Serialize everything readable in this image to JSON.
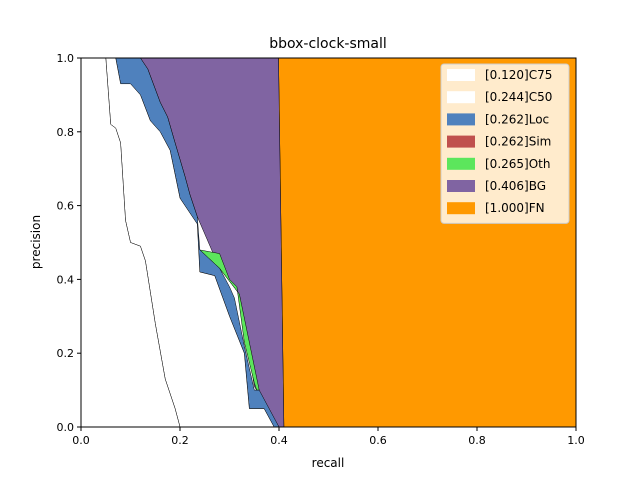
{
  "chart_data": {
    "type": "area",
    "title": "bbox-clock-small",
    "xlabel": "recall",
    "ylabel": "precision",
    "xlim": [
      0,
      1
    ],
    "ylim": [
      0,
      1
    ],
    "xticks": [
      "0.0",
      "0.2",
      "0.4",
      "0.6",
      "0.8",
      "1.0"
    ],
    "yticks": [
      "0.0",
      "0.2",
      "0.4",
      "0.6",
      "0.8",
      "1.0"
    ],
    "grid": false,
    "legend_position": "top-right",
    "series": [
      {
        "name": "[1.000]FN",
        "color": "#FF9900",
        "points": [
          [
            0.399,
            1.0
          ],
          [
            1.0,
            1.0
          ],
          [
            1.0,
            0.0
          ],
          [
            0.41,
            0.0
          ]
        ]
      },
      {
        "name": "[0.406]BG",
        "color": "#8064A2",
        "points": [
          [
            0.12,
            1.0
          ],
          [
            0.399,
            1.0
          ],
          [
            0.41,
            0.0
          ],
          [
            0.4,
            0.0
          ],
          [
            0.35,
            0.11
          ],
          [
            0.335,
            0.24
          ],
          [
            0.32,
            0.36
          ],
          [
            0.28,
            0.43
          ],
          [
            0.235,
            0.57
          ],
          [
            0.22,
            0.63
          ],
          [
            0.21,
            0.68
          ],
          [
            0.19,
            0.77
          ],
          [
            0.175,
            0.84
          ],
          [
            0.16,
            0.88
          ],
          [
            0.135,
            0.97
          ],
          [
            0.12,
            1.0
          ]
        ]
      },
      {
        "name": "[0.265]Oth",
        "color": "#5CE65C",
        "points": [
          [
            0.24,
            0.48
          ],
          [
            0.28,
            0.47
          ],
          [
            0.3,
            0.4
          ],
          [
            0.315,
            0.38
          ],
          [
            0.33,
            0.23
          ],
          [
            0.35,
            0.12
          ],
          [
            0.355,
            0.1
          ],
          [
            0.36,
            0.1
          ],
          [
            0.32,
            0.36
          ],
          [
            0.28,
            0.43
          ],
          [
            0.24,
            0.48
          ]
        ]
      },
      {
        "name": "[0.262]Sim",
        "color": "#C0504D",
        "points": []
      },
      {
        "name": "[0.262]Loc",
        "color": "#4F81BD",
        "points": [
          [
            0.07,
            1.0
          ],
          [
            0.12,
            1.0
          ],
          [
            0.135,
            0.97
          ],
          [
            0.16,
            0.88
          ],
          [
            0.175,
            0.84
          ],
          [
            0.19,
            0.77
          ],
          [
            0.21,
            0.68
          ],
          [
            0.22,
            0.63
          ],
          [
            0.235,
            0.57
          ],
          [
            0.24,
            0.48
          ],
          [
            0.28,
            0.43
          ],
          [
            0.3,
            0.38
          ],
          [
            0.31,
            0.35
          ],
          [
            0.33,
            0.22
          ],
          [
            0.35,
            0.1
          ],
          [
            0.36,
            0.1
          ],
          [
            0.4,
            0.0
          ],
          [
            0.39,
            0.0
          ],
          [
            0.37,
            0.05
          ],
          [
            0.34,
            0.05
          ],
          [
            0.33,
            0.2
          ],
          [
            0.3,
            0.3
          ],
          [
            0.27,
            0.41
          ],
          [
            0.24,
            0.42
          ],
          [
            0.235,
            0.55
          ],
          [
            0.2,
            0.62
          ],
          [
            0.18,
            0.75
          ],
          [
            0.16,
            0.8
          ],
          [
            0.14,
            0.83
          ],
          [
            0.12,
            0.9
          ],
          [
            0.1,
            0.93
          ],
          [
            0.08,
            0.93
          ],
          [
            0.07,
            1.0
          ]
        ]
      },
      {
        "name": "[0.244]C50",
        "color": "#FFFFFF",
        "points": [
          [
            0.05,
            1.0
          ],
          [
            0.07,
            1.0
          ],
          [
            0.08,
            0.93
          ],
          [
            0.1,
            0.93
          ],
          [
            0.12,
            0.9
          ],
          [
            0.14,
            0.83
          ],
          [
            0.16,
            0.8
          ],
          [
            0.18,
            0.75
          ],
          [
            0.2,
            0.62
          ],
          [
            0.235,
            0.55
          ],
          [
            0.24,
            0.42
          ],
          [
            0.27,
            0.41
          ],
          [
            0.3,
            0.3
          ],
          [
            0.33,
            0.2
          ],
          [
            0.34,
            0.05
          ],
          [
            0.37,
            0.05
          ],
          [
            0.39,
            0.0
          ],
          [
            0.2,
            0.0
          ],
          [
            0.19,
            0.05
          ],
          [
            0.17,
            0.13
          ],
          [
            0.15,
            0.28
          ],
          [
            0.13,
            0.45
          ],
          [
            0.12,
            0.49
          ],
          [
            0.1,
            0.5
          ],
          [
            0.09,
            0.56
          ],
          [
            0.08,
            0.77
          ],
          [
            0.07,
            0.81
          ],
          [
            0.06,
            0.82
          ],
          [
            0.05,
            1.0
          ]
        ]
      },
      {
        "name": "[0.120]C75",
        "color": "#FFFFFF",
        "points": [
          [
            0.0,
            1.0
          ],
          [
            0.05,
            1.0
          ],
          [
            0.06,
            0.82
          ],
          [
            0.07,
            0.81
          ],
          [
            0.08,
            0.77
          ],
          [
            0.09,
            0.56
          ],
          [
            0.1,
            0.5
          ],
          [
            0.12,
            0.49
          ],
          [
            0.13,
            0.45
          ],
          [
            0.15,
            0.28
          ],
          [
            0.17,
            0.13
          ],
          [
            0.19,
            0.05
          ],
          [
            0.2,
            0.0
          ],
          [
            0.0,
            0.0
          ]
        ]
      }
    ],
    "legend": [
      {
        "label": "[0.120]C75",
        "color": "#FFFFFF"
      },
      {
        "label": "[0.244]C50",
        "color": "#FFFFFF"
      },
      {
        "label": "[0.262]Loc",
        "color": "#4F81BD"
      },
      {
        "label": "[0.262]Sim",
        "color": "#C0504D"
      },
      {
        "label": "[0.265]Oth",
        "color": "#5CE65C"
      },
      {
        "label": "[0.406]BG",
        "color": "#8064A2"
      },
      {
        "label": "[1.000]FN",
        "color": "#FF9900"
      }
    ]
  }
}
